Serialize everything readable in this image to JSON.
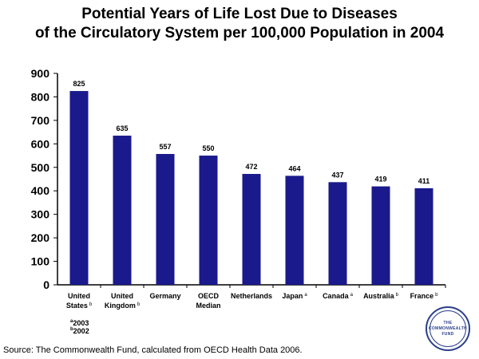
{
  "title_line1": "Potential Years of Life Lost Due to Diseases",
  "title_line2": "of the Circulatory System per 100,000 Population in 2004",
  "chart_data": {
    "type": "bar",
    "title": "Potential Years of Life Lost Due to Diseases of the Circulatory System per 100,000 Population in 2004",
    "categories": [
      {
        "lines": [
          "United",
          "States"
        ],
        "note": "b"
      },
      {
        "lines": [
          "United",
          "Kingdom"
        ],
        "note": "b"
      },
      {
        "lines": [
          "Germany"
        ],
        "note": ""
      },
      {
        "lines": [
          "OECD",
          "Median"
        ],
        "note": ""
      },
      {
        "lines": [
          "Netherlands"
        ],
        "note": ""
      },
      {
        "lines": [
          "Japan"
        ],
        "note": "a"
      },
      {
        "lines": [
          "Canada"
        ],
        "note": "a"
      },
      {
        "lines": [
          "Australia"
        ],
        "note": "b"
      },
      {
        "lines": [
          "France"
        ],
        "note": "b"
      }
    ],
    "values": [
      825,
      635,
      557,
      550,
      472,
      464,
      437,
      419,
      411
    ],
    "value_labels": [
      "825",
      "635",
      "557",
      "550",
      "472",
      "464",
      "437",
      "419",
      "411"
    ],
    "ylim": [
      0,
      900
    ],
    "yticks": [
      0,
      100,
      200,
      300,
      400,
      500,
      600,
      700,
      800,
      900
    ],
    "grid": false,
    "bar_color": "#1a1a8c"
  },
  "footnotes": [
    {
      "mark": "a",
      "text": "2003"
    },
    {
      "mark": "b",
      "text": "2002"
    }
  ],
  "source": "Source: The Commonwealth Fund, calculated from OECD Health Data 2006.",
  "logo": {
    "line1": "THE",
    "line2": "COMMONWEALTH",
    "line3": "FUND"
  }
}
